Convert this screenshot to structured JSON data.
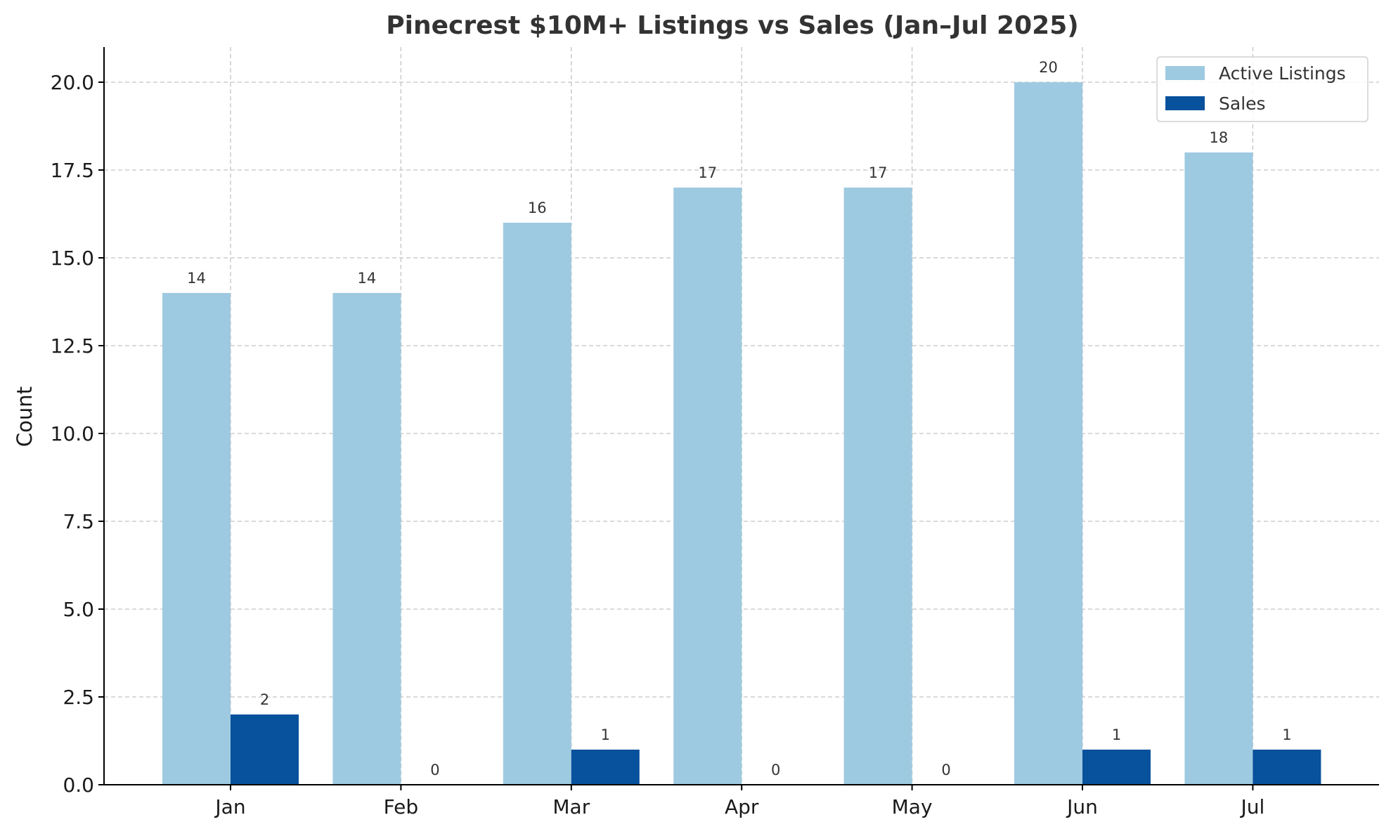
{
  "chart_data": {
    "type": "bar",
    "title": "Pinecrest $10M+ Listings vs Sales (Jan–Jul 2025)",
    "xlabel": "",
    "ylabel": "Count",
    "categories": [
      "Jan",
      "Feb",
      "Mar",
      "Apr",
      "May",
      "Jun",
      "Jul"
    ],
    "series": [
      {
        "name": "Active Listings",
        "values": [
          14,
          14,
          16,
          17,
          17,
          20,
          18
        ],
        "color": "#9ecae1"
      },
      {
        "name": "Sales",
        "values": [
          2,
          0,
          1,
          0,
          0,
          1,
          1
        ],
        "color": "#08519c"
      }
    ],
    "ylim": [
      0,
      21
    ],
    "yticks": [
      "0.0",
      "2.5",
      "5.0",
      "7.5",
      "10.0",
      "12.5",
      "15.0",
      "17.5",
      "20.0"
    ],
    "grid": true,
    "legend_position": "top-right"
  }
}
